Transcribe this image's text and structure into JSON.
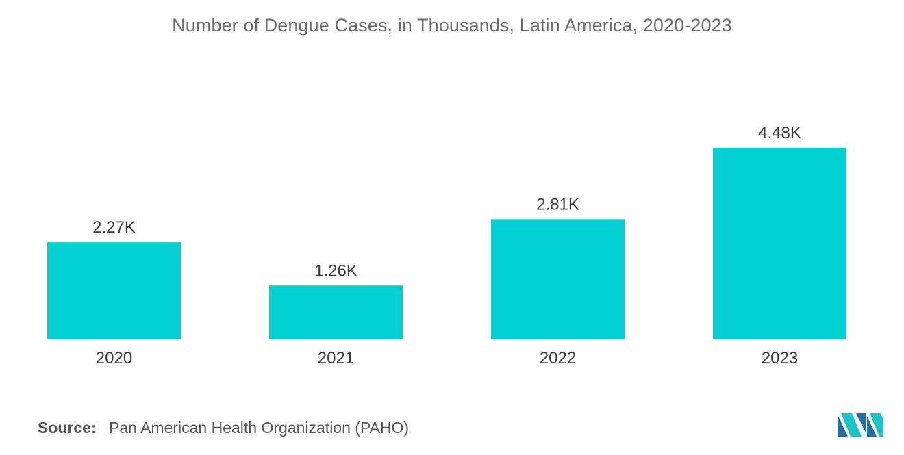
{
  "chart_data": {
    "type": "bar",
    "title": "Number of Dengue Cases, in Thousands, Latin America, 2020-2023",
    "categories": [
      "2020",
      "2021",
      "2022",
      "2023"
    ],
    "values": [
      2.27,
      1.26,
      2.81,
      4.48
    ],
    "data_labels": [
      "2.27K",
      "1.26K",
      "2.81K",
      "4.48K"
    ],
    "xlabel": "",
    "ylabel": "",
    "ylim": [
      0,
      4.48
    ],
    "grid": false,
    "bar_color": "#00CED1"
  },
  "source": {
    "label": "Source:",
    "text": "Pan American Health Organization (PAHO)"
  },
  "logo": {
    "name": "mordor-intelligence-logo",
    "colors": [
      "#1F6FA8",
      "#19C3C8"
    ]
  }
}
